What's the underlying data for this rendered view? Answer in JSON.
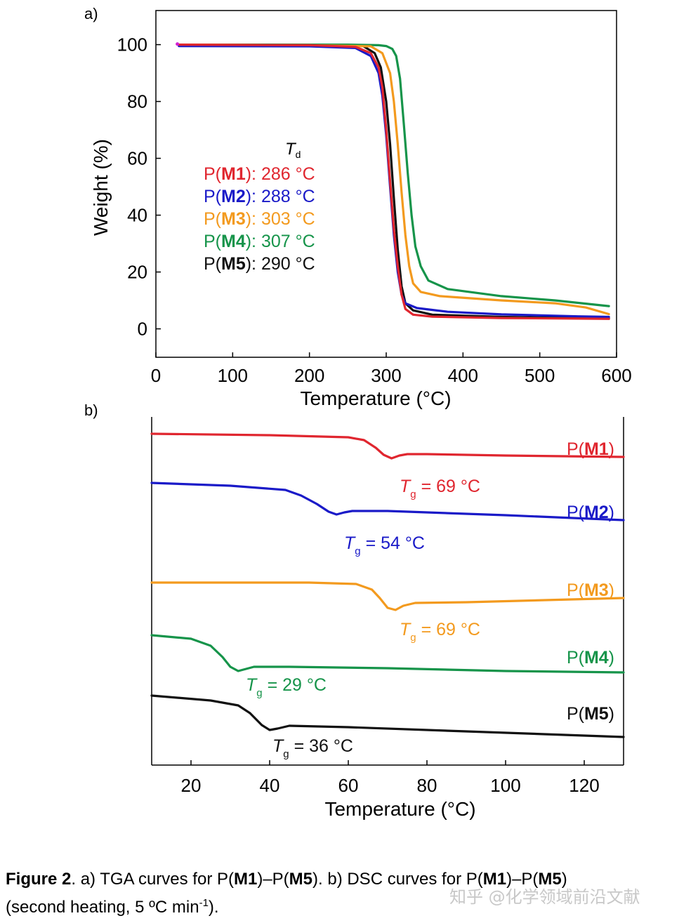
{
  "panel_a": {
    "label": "a)"
  },
  "panel_b": {
    "label": "b)"
  },
  "chart_data": [
    {
      "type": "line",
      "panel": "a",
      "xlabel": "Temperature (°C)",
      "ylabel": "Weight (%)",
      "xlim": [
        0,
        600
      ],
      "ylim": [
        -10,
        112
      ],
      "xticks": [
        0,
        100,
        200,
        300,
        400,
        500,
        600
      ],
      "yticks": [
        0,
        20,
        40,
        60,
        80,
        100
      ],
      "legend_title": "T",
      "legend_title_sub": "d",
      "legend_placement": "middle-left",
      "series": [
        {
          "name": "P(M1)",
          "bold": "M1",
          "td": ": 286 °C",
          "color": "#e0262f",
          "points": [
            [
              30,
              100
            ],
            [
              200,
              99.8
            ],
            [
              260,
              99.2
            ],
            [
              280,
              97
            ],
            [
              290,
              92
            ],
            [
              295,
              85
            ],
            [
              300,
              70
            ],
            [
              305,
              52
            ],
            [
              310,
              35
            ],
            [
              315,
              22
            ],
            [
              320,
              12
            ],
            [
              325,
              7
            ],
            [
              335,
              5
            ],
            [
              360,
              4.3
            ],
            [
              450,
              3.8
            ],
            [
              550,
              3.6
            ],
            [
              590,
              3.5
            ]
          ]
        },
        {
          "name": "P(M2)",
          "bold": "M2",
          "td": ": 288 °C",
          "color": "#1a1ac8",
          "points": [
            [
              30,
              99.5
            ],
            [
              200,
              99.4
            ],
            [
              260,
              98.8
            ],
            [
              280,
              96
            ],
            [
              290,
              90
            ],
            [
              295,
              82
            ],
            [
              300,
              68
            ],
            [
              305,
              50
            ],
            [
              310,
              33
            ],
            [
              315,
              20
            ],
            [
              320,
              12
            ],
            [
              325,
              9
            ],
            [
              340,
              7.3
            ],
            [
              380,
              6
            ],
            [
              450,
              5.1
            ],
            [
              550,
              4.4
            ],
            [
              590,
              4.2
            ]
          ]
        },
        {
          "name": "P(M3)",
          "bold": "M3",
          "td": ": 303 °C",
          "color": "#f39a1e",
          "points": [
            [
              30,
              100
            ],
            [
              200,
              99.8
            ],
            [
              280,
              99.4
            ],
            [
              295,
              97
            ],
            [
              305,
              90
            ],
            [
              310,
              80
            ],
            [
              315,
              65
            ],
            [
              320,
              48
            ],
            [
              325,
              33
            ],
            [
              330,
              22
            ],
            [
              335,
              16
            ],
            [
              345,
              13
            ],
            [
              370,
              11.5
            ],
            [
              450,
              10
            ],
            [
              520,
              9
            ],
            [
              560,
              7.5
            ],
            [
              590,
              5.2
            ]
          ]
        },
        {
          "name": "P(M4)",
          "bold": "M4",
          "td": ": 307 °C",
          "color": "#16944a",
          "points": [
            [
              30,
              100
            ],
            [
              250,
              100
            ],
            [
              290,
              99.8
            ],
            [
              300,
              99.5
            ],
            [
              308,
              98.5
            ],
            [
              313,
              96
            ],
            [
              318,
              88
            ],
            [
              323,
              72
            ],
            [
              328,
              55
            ],
            [
              333,
              40
            ],
            [
              338,
              29
            ],
            [
              345,
              22
            ],
            [
              355,
              17
            ],
            [
              380,
              14
            ],
            [
              450,
              11.5
            ],
            [
              520,
              10
            ],
            [
              590,
              8
            ]
          ]
        },
        {
          "name": "P(M5)",
          "bold": "M5",
          "td": ": 290 °C",
          "color": "#111111",
          "points": [
            [
              30,
              100
            ],
            [
              200,
              99.9
            ],
            [
              270,
              99.5
            ],
            [
              285,
              97
            ],
            [
              293,
              92
            ],
            [
              300,
              80
            ],
            [
              305,
              65
            ],
            [
              310,
              46
            ],
            [
              315,
              28
            ],
            [
              320,
              15
            ],
            [
              325,
              9
            ],
            [
              335,
              6.5
            ],
            [
              360,
              5
            ],
            [
              450,
              4.2
            ],
            [
              550,
              3.8
            ],
            [
              590,
              3.7
            ]
          ]
        }
      ]
    },
    {
      "type": "line",
      "panel": "b",
      "xlabel": "Temperature (°C)",
      "ylabel": "",
      "xlim": [
        10,
        130
      ],
      "xticks": [
        20,
        40,
        60,
        80,
        100,
        120
      ],
      "yaxis_shown": false,
      "series": [
        {
          "name": "P(M1)",
          "bold": "M1",
          "color": "#e0262f",
          "tg_label": "= 69 °C",
          "tg": 69,
          "points": [
            [
              10,
              0
            ],
            [
              40,
              -2
            ],
            [
              60,
              -5
            ],
            [
              64,
              -9
            ],
            [
              67,
              -20
            ],
            [
              69,
              -30
            ],
            [
              71,
              -35
            ],
            [
              73,
              -31
            ],
            [
              75,
              -29
            ],
            [
              80,
              -29
            ],
            [
              100,
              -31
            ],
            [
              130,
              -33
            ]
          ]
        },
        {
          "name": "P(M2)",
          "bold": "M2",
          "color": "#1a1ac8",
          "tg_label": "= 54 °C",
          "tg": 54,
          "points": [
            [
              10,
              -70
            ],
            [
              30,
              -74
            ],
            [
              44,
              -80
            ],
            [
              48,
              -88
            ],
            [
              52,
              -100
            ],
            [
              55,
              -111
            ],
            [
              57,
              -115
            ],
            [
              59,
              -112
            ],
            [
              61,
              -110
            ],
            [
              70,
              -110
            ],
            [
              100,
              -116
            ],
            [
              130,
              -123
            ]
          ]
        },
        {
          "name": "P(M3)",
          "bold": "M3",
          "color": "#f39a1e",
          "tg_label": "= 69 °C",
          "tg": 69,
          "points": [
            [
              10,
              -212
            ],
            [
              50,
              -212
            ],
            [
              62,
              -214
            ],
            [
              66,
              -222
            ],
            [
              68,
              -234
            ],
            [
              70,
              -248
            ],
            [
              72,
              -251
            ],
            [
              74,
              -245
            ],
            [
              77,
              -241
            ],
            [
              90,
              -240
            ],
            [
              110,
              -237
            ],
            [
              130,
              -234
            ]
          ]
        },
        {
          "name": "P(M4)",
          "bold": "M4",
          "color": "#16944a",
          "tg_label": "= 29 °C",
          "tg": 29,
          "points": [
            [
              10,
              -287
            ],
            [
              20,
              -292
            ],
            [
              25,
              -302
            ],
            [
              28,
              -318
            ],
            [
              30,
              -332
            ],
            [
              32,
              -338
            ],
            [
              34,
              -335
            ],
            [
              36,
              -332
            ],
            [
              45,
              -332
            ],
            [
              70,
              -334
            ],
            [
              100,
              -338
            ],
            [
              130,
              -340
            ]
          ]
        },
        {
          "name": "P(M5)",
          "bold": "M5",
          "color": "#111111",
          "tg_label": "= 36 °C",
          "tg": 36,
          "points": [
            [
              10,
              -373
            ],
            [
              25,
              -380
            ],
            [
              32,
              -387
            ],
            [
              35,
              -398
            ],
            [
              38,
              -415
            ],
            [
              40,
              -422
            ],
            [
              42,
              -420
            ],
            [
              45,
              -416
            ],
            [
              60,
              -418
            ],
            [
              90,
              -424
            ],
            [
              130,
              -432
            ]
          ]
        }
      ]
    }
  ],
  "caption": {
    "fig": "Figure 2",
    "t1": ". a) TGA curves for P(",
    "b1": "M1",
    "t2": ")–P(",
    "b2": "M5",
    "t3": "). b) DSC curves for P(",
    "b3": "M1",
    "t4": ")–P(",
    "b4": "M5",
    "t5": ")",
    "line2": "(second heating, 5 ºC min",
    "sup": "-1",
    "end": ")."
  },
  "watermark": "知乎 @化学领域前沿文献"
}
